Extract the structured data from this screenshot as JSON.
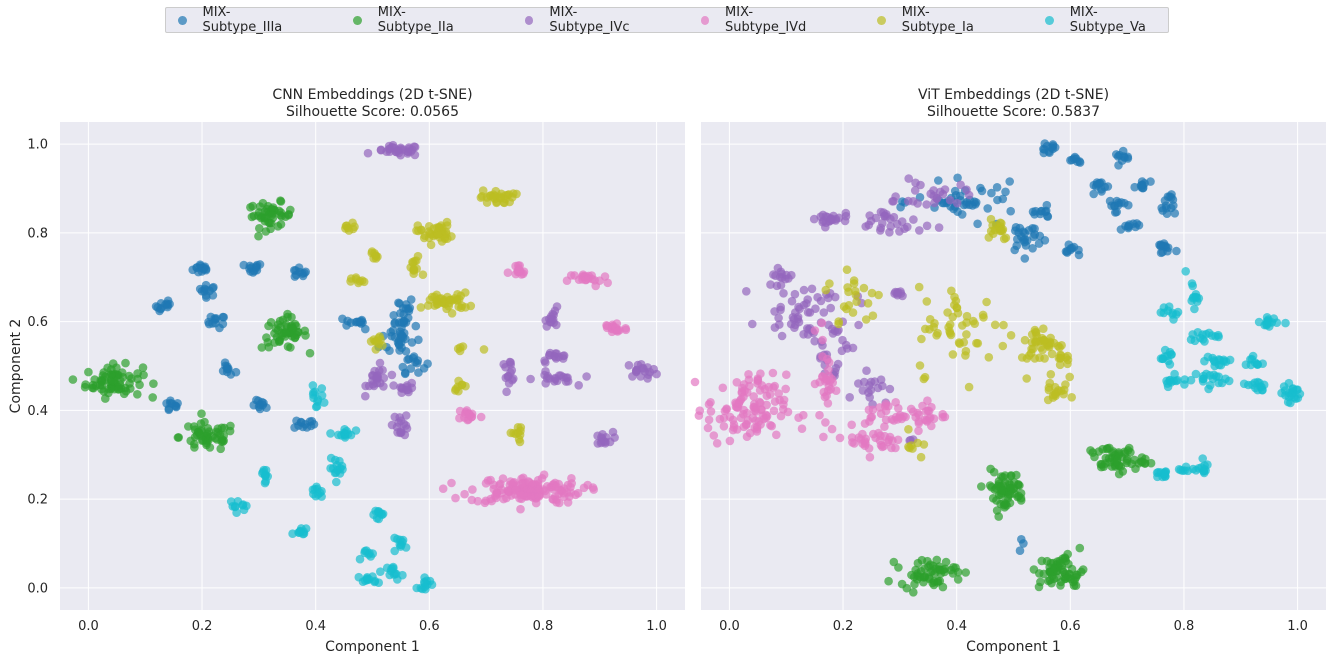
{
  "legend": [
    {
      "label": "MIX-Subtype_IIIa",
      "color": "#1f77b4"
    },
    {
      "label": "MIX-Subtype_IIa",
      "color": "#2ca02c"
    },
    {
      "label": "MIX-Subtype_IVc",
      "color": "#9467bd"
    },
    {
      "label": "MIX-Subtype_IVd",
      "color": "#e377c2"
    },
    {
      "label": "MIX-Subtype_Ia",
      "color": "#bcbd22"
    },
    {
      "label": "MIX-Subtype_Va",
      "color": "#17becf"
    }
  ],
  "chart_data": [
    {
      "type": "scatter",
      "title": "CNN Embeddings (2D t-SNE)",
      "subtitle": "Silhouette Score: 0.0565",
      "xlabel": "Component 1",
      "ylabel": "Component 2",
      "xlim": [
        -0.05,
        1.05
      ],
      "ylim": [
        -0.05,
        1.05
      ],
      "xticks": [
        "0.0",
        "0.2",
        "0.4",
        "0.6",
        "0.8",
        "1.0"
      ],
      "yticks": [
        "0.0",
        "0.2",
        "0.4",
        "0.6",
        "0.8",
        "1.0"
      ],
      "grid": true,
      "clusters": [
        {
          "series": "MIX-Subtype_IIIa",
          "x": 0.2,
          "y": 0.72,
          "sx": 0.008,
          "sy": 0.006,
          "n": 14
        },
        {
          "series": "MIX-Subtype_IIIa",
          "x": 0.21,
          "y": 0.67,
          "sx": 0.008,
          "sy": 0.006,
          "n": 12
        },
        {
          "series": "MIX-Subtype_IIIa",
          "x": 0.135,
          "y": 0.635,
          "sx": 0.008,
          "sy": 0.008,
          "n": 12
        },
        {
          "series": "MIX-Subtype_IIIa",
          "x": 0.225,
          "y": 0.6,
          "sx": 0.008,
          "sy": 0.007,
          "n": 12
        },
        {
          "series": "MIX-Subtype_IIIa",
          "x": 0.29,
          "y": 0.72,
          "sx": 0.008,
          "sy": 0.006,
          "n": 12
        },
        {
          "series": "MIX-Subtype_IIIa",
          "x": 0.37,
          "y": 0.71,
          "sx": 0.007,
          "sy": 0.007,
          "n": 10
        },
        {
          "series": "MIX-Subtype_IIIa",
          "x": 0.245,
          "y": 0.49,
          "sx": 0.007,
          "sy": 0.007,
          "n": 10
        },
        {
          "series": "MIX-Subtype_IIIa",
          "x": 0.145,
          "y": 0.41,
          "sx": 0.008,
          "sy": 0.007,
          "n": 10
        },
        {
          "series": "MIX-Subtype_IIIa",
          "x": 0.305,
          "y": 0.41,
          "sx": 0.008,
          "sy": 0.006,
          "n": 10
        },
        {
          "series": "MIX-Subtype_IIIa",
          "x": 0.38,
          "y": 0.37,
          "sx": 0.009,
          "sy": 0.006,
          "n": 12
        },
        {
          "series": "MIX-Subtype_IIIa",
          "x": 0.47,
          "y": 0.6,
          "sx": 0.01,
          "sy": 0.006,
          "n": 12
        },
        {
          "series": "MIX-Subtype_IIIa",
          "x": 0.55,
          "y": 0.62,
          "sx": 0.012,
          "sy": 0.02,
          "n": 22
        },
        {
          "series": "MIX-Subtype_IIIa",
          "x": 0.55,
          "y": 0.56,
          "sx": 0.018,
          "sy": 0.02,
          "n": 28
        },
        {
          "series": "MIX-Subtype_IIIa",
          "x": 0.57,
          "y": 0.51,
          "sx": 0.012,
          "sy": 0.012,
          "n": 14
        },
        {
          "series": "MIX-Subtype_IIa",
          "x": 0.045,
          "y": 0.465,
          "sx": 0.025,
          "sy": 0.018,
          "n": 70
        },
        {
          "series": "MIX-Subtype_IIa",
          "x": 0.32,
          "y": 0.84,
          "sx": 0.02,
          "sy": 0.014,
          "n": 45
        },
        {
          "series": "MIX-Subtype_IIa",
          "x": 0.345,
          "y": 0.575,
          "sx": 0.02,
          "sy": 0.018,
          "n": 50
        },
        {
          "series": "MIX-Subtype_IIa",
          "x": 0.21,
          "y": 0.34,
          "sx": 0.025,
          "sy": 0.016,
          "n": 50
        },
        {
          "series": "MIX-Subtype_IVc",
          "x": 0.545,
          "y": 0.985,
          "sx": 0.02,
          "sy": 0.006,
          "n": 30
        },
        {
          "series": "MIX-Subtype_IVc",
          "x": 0.51,
          "y": 0.47,
          "sx": 0.01,
          "sy": 0.015,
          "n": 22
        },
        {
          "series": "MIX-Subtype_IVc",
          "x": 0.56,
          "y": 0.45,
          "sx": 0.008,
          "sy": 0.006,
          "n": 12
        },
        {
          "series": "MIX-Subtype_IVc",
          "x": 0.55,
          "y": 0.37,
          "sx": 0.007,
          "sy": 0.014,
          "n": 16
        },
        {
          "series": "MIX-Subtype_IVc",
          "x": 0.82,
          "y": 0.61,
          "sx": 0.008,
          "sy": 0.01,
          "n": 14
        },
        {
          "series": "MIX-Subtype_IVc",
          "x": 0.82,
          "y": 0.52,
          "sx": 0.012,
          "sy": 0.006,
          "n": 14
        },
        {
          "series": "MIX-Subtype_IVc",
          "x": 0.74,
          "y": 0.49,
          "sx": 0.007,
          "sy": 0.012,
          "n": 14
        },
        {
          "series": "MIX-Subtype_IVc",
          "x": 0.82,
          "y": 0.47,
          "sx": 0.018,
          "sy": 0.008,
          "n": 20
        },
        {
          "series": "MIX-Subtype_IVc",
          "x": 0.975,
          "y": 0.49,
          "sx": 0.015,
          "sy": 0.008,
          "n": 18
        },
        {
          "series": "MIX-Subtype_IVc",
          "x": 0.905,
          "y": 0.335,
          "sx": 0.009,
          "sy": 0.008,
          "n": 14
        },
        {
          "series": "MIX-Subtype_IVd",
          "x": 0.755,
          "y": 0.71,
          "sx": 0.008,
          "sy": 0.01,
          "n": 14
        },
        {
          "series": "MIX-Subtype_IVd",
          "x": 0.88,
          "y": 0.695,
          "sx": 0.018,
          "sy": 0.008,
          "n": 20
        },
        {
          "series": "MIX-Subtype_IVd",
          "x": 0.925,
          "y": 0.585,
          "sx": 0.012,
          "sy": 0.008,
          "n": 18
        },
        {
          "series": "MIX-Subtype_IVd",
          "x": 0.67,
          "y": 0.39,
          "sx": 0.01,
          "sy": 0.008,
          "n": 14
        },
        {
          "series": "MIX-Subtype_IVd",
          "x": 0.77,
          "y": 0.22,
          "sx": 0.05,
          "sy": 0.015,
          "n": 140
        },
        {
          "series": "MIX-Subtype_Ia",
          "x": 0.72,
          "y": 0.88,
          "sx": 0.015,
          "sy": 0.008,
          "n": 28
        },
        {
          "series": "MIX-Subtype_Ia",
          "x": 0.61,
          "y": 0.8,
          "sx": 0.015,
          "sy": 0.012,
          "n": 40
        },
        {
          "series": "MIX-Subtype_Ia",
          "x": 0.46,
          "y": 0.81,
          "sx": 0.006,
          "sy": 0.006,
          "n": 8
        },
        {
          "series": "MIX-Subtype_Ia",
          "x": 0.505,
          "y": 0.75,
          "sx": 0.006,
          "sy": 0.005,
          "n": 8
        },
        {
          "series": "MIX-Subtype_Ia",
          "x": 0.475,
          "y": 0.69,
          "sx": 0.006,
          "sy": 0.005,
          "n": 8
        },
        {
          "series": "MIX-Subtype_Ia",
          "x": 0.575,
          "y": 0.72,
          "sx": 0.006,
          "sy": 0.015,
          "n": 12
        },
        {
          "series": "MIX-Subtype_Ia",
          "x": 0.63,
          "y": 0.645,
          "sx": 0.02,
          "sy": 0.01,
          "n": 40
        },
        {
          "series": "MIX-Subtype_Ia",
          "x": 0.51,
          "y": 0.555,
          "sx": 0.007,
          "sy": 0.008,
          "n": 10
        },
        {
          "series": "MIX-Subtype_Ia",
          "x": 0.655,
          "y": 0.54,
          "sx": 0.004,
          "sy": 0.004,
          "n": 4
        },
        {
          "series": "MIX-Subtype_Ia",
          "x": 0.7,
          "y": 0.535,
          "sx": 0.002,
          "sy": 0.002,
          "n": 1
        },
        {
          "series": "MIX-Subtype_Ia",
          "x": 0.655,
          "y": 0.46,
          "sx": 0.006,
          "sy": 0.008,
          "n": 8
        },
        {
          "series": "MIX-Subtype_Ia",
          "x": 0.755,
          "y": 0.345,
          "sx": 0.006,
          "sy": 0.01,
          "n": 10
        },
        {
          "series": "MIX-Subtype_Va",
          "x": 0.4,
          "y": 0.43,
          "sx": 0.007,
          "sy": 0.012,
          "n": 12
        },
        {
          "series": "MIX-Subtype_Va",
          "x": 0.45,
          "y": 0.345,
          "sx": 0.008,
          "sy": 0.008,
          "n": 14
        },
        {
          "series": "MIX-Subtype_Va",
          "x": 0.31,
          "y": 0.26,
          "sx": 0.006,
          "sy": 0.01,
          "n": 10
        },
        {
          "series": "MIX-Subtype_Va",
          "x": 0.44,
          "y": 0.27,
          "sx": 0.008,
          "sy": 0.01,
          "n": 14
        },
        {
          "series": "MIX-Subtype_Va",
          "x": 0.4,
          "y": 0.215,
          "sx": 0.006,
          "sy": 0.008,
          "n": 10
        },
        {
          "series": "MIX-Subtype_Va",
          "x": 0.265,
          "y": 0.185,
          "sx": 0.008,
          "sy": 0.006,
          "n": 10
        },
        {
          "series": "MIX-Subtype_Va",
          "x": 0.375,
          "y": 0.125,
          "sx": 0.007,
          "sy": 0.006,
          "n": 10
        },
        {
          "series": "MIX-Subtype_Va",
          "x": 0.515,
          "y": 0.165,
          "sx": 0.008,
          "sy": 0.006,
          "n": 10
        },
        {
          "series": "MIX-Subtype_Va",
          "x": 0.55,
          "y": 0.1,
          "sx": 0.008,
          "sy": 0.006,
          "n": 10
        },
        {
          "series": "MIX-Subtype_Va",
          "x": 0.495,
          "y": 0.075,
          "sx": 0.006,
          "sy": 0.006,
          "n": 8
        },
        {
          "series": "MIX-Subtype_Va",
          "x": 0.54,
          "y": 0.035,
          "sx": 0.007,
          "sy": 0.008,
          "n": 12
        },
        {
          "series": "MIX-Subtype_Va",
          "x": 0.49,
          "y": 0.018,
          "sx": 0.008,
          "sy": 0.006,
          "n": 12
        },
        {
          "series": "MIX-Subtype_Va",
          "x": 0.595,
          "y": 0.01,
          "sx": 0.008,
          "sy": 0.006,
          "n": 12
        }
      ]
    },
    {
      "type": "scatter",
      "title": "ViT Embeddings (2D t-SNE)",
      "subtitle": "Silhouette Score: 0.5837",
      "xlabel": "Component 1",
      "ylabel": "",
      "xlim": [
        -0.05,
        1.05
      ],
      "ylim": [
        -0.05,
        1.05
      ],
      "xticks": [
        "0.0",
        "0.2",
        "0.4",
        "0.6",
        "0.8",
        "1.0"
      ],
      "yticks": [],
      "grid": true,
      "clusters": [
        {
          "series": "MIX-Subtype_IIIa",
          "x": 0.56,
          "y": 0.99,
          "sx": 0.008,
          "sy": 0.006,
          "n": 12
        },
        {
          "series": "MIX-Subtype_IIIa",
          "x": 0.61,
          "y": 0.965,
          "sx": 0.008,
          "sy": 0.004,
          "n": 8
        },
        {
          "series": "MIX-Subtype_IIIa",
          "x": 0.695,
          "y": 0.97,
          "sx": 0.008,
          "sy": 0.006,
          "n": 10
        },
        {
          "series": "MIX-Subtype_IIIa",
          "x": 0.65,
          "y": 0.905,
          "sx": 0.008,
          "sy": 0.008,
          "n": 12
        },
        {
          "series": "MIX-Subtype_IIIa",
          "x": 0.73,
          "y": 0.905,
          "sx": 0.007,
          "sy": 0.008,
          "n": 10
        },
        {
          "series": "MIX-Subtype_IIIa",
          "x": 0.68,
          "y": 0.865,
          "sx": 0.008,
          "sy": 0.008,
          "n": 12
        },
        {
          "series": "MIX-Subtype_IIIa",
          "x": 0.77,
          "y": 0.865,
          "sx": 0.007,
          "sy": 0.015,
          "n": 14
        },
        {
          "series": "MIX-Subtype_IIIa",
          "x": 0.705,
          "y": 0.815,
          "sx": 0.008,
          "sy": 0.006,
          "n": 10
        },
        {
          "series": "MIX-Subtype_IIIa",
          "x": 0.605,
          "y": 0.76,
          "sx": 0.007,
          "sy": 0.006,
          "n": 10
        },
        {
          "series": "MIX-Subtype_IIIa",
          "x": 0.765,
          "y": 0.765,
          "sx": 0.008,
          "sy": 0.008,
          "n": 12
        },
        {
          "series": "MIX-Subtype_IIIa",
          "x": 0.52,
          "y": 0.79,
          "sx": 0.015,
          "sy": 0.02,
          "n": 26
        },
        {
          "series": "MIX-Subtype_IIIa",
          "x": 0.42,
          "y": 0.87,
          "sx": 0.045,
          "sy": 0.02,
          "n": 45
        },
        {
          "series": "MIX-Subtype_IIIa",
          "x": 0.55,
          "y": 0.845,
          "sx": 0.01,
          "sy": 0.006,
          "n": 10
        },
        {
          "series": "MIX-Subtype_IIIa",
          "x": 0.515,
          "y": 0.1,
          "sx": 0.003,
          "sy": 0.012,
          "n": 3
        },
        {
          "series": "MIX-Subtype_IVc",
          "x": 0.175,
          "y": 0.83,
          "sx": 0.018,
          "sy": 0.008,
          "n": 22
        },
        {
          "series": "MIX-Subtype_IVc",
          "x": 0.28,
          "y": 0.82,
          "sx": 0.03,
          "sy": 0.02,
          "n": 28
        },
        {
          "series": "MIX-Subtype_IVc",
          "x": 0.36,
          "y": 0.885,
          "sx": 0.03,
          "sy": 0.015,
          "n": 24
        },
        {
          "series": "MIX-Subtype_IVc",
          "x": 0.09,
          "y": 0.7,
          "sx": 0.01,
          "sy": 0.008,
          "n": 12
        },
        {
          "series": "MIX-Subtype_IVc",
          "x": 0.12,
          "y": 0.63,
          "sx": 0.03,
          "sy": 0.03,
          "n": 40
        },
        {
          "series": "MIX-Subtype_IVc",
          "x": 0.18,
          "y": 0.57,
          "sx": 0.025,
          "sy": 0.06,
          "n": 40
        },
        {
          "series": "MIX-Subtype_IVc",
          "x": 0.25,
          "y": 0.46,
          "sx": 0.015,
          "sy": 0.02,
          "n": 16
        },
        {
          "series": "MIX-Subtype_IVc",
          "x": 0.295,
          "y": 0.66,
          "sx": 0.007,
          "sy": 0.006,
          "n": 8
        },
        {
          "series": "MIX-Subtype_IVc",
          "x": 0.315,
          "y": 0.33,
          "sx": 0.004,
          "sy": 0.004,
          "n": 3
        },
        {
          "series": "MIX-Subtype_IVd",
          "x": 0.03,
          "y": 0.4,
          "sx": 0.035,
          "sy": 0.04,
          "n": 110
        },
        {
          "series": "MIX-Subtype_IVd",
          "x": 0.17,
          "y": 0.47,
          "sx": 0.008,
          "sy": 0.06,
          "n": 30
        },
        {
          "series": "MIX-Subtype_IVd",
          "x": 0.275,
          "y": 0.39,
          "sx": 0.018,
          "sy": 0.015,
          "n": 24
        },
        {
          "series": "MIX-Subtype_IVd",
          "x": 0.34,
          "y": 0.39,
          "sx": 0.02,
          "sy": 0.015,
          "n": 26
        },
        {
          "series": "MIX-Subtype_IVd",
          "x": 0.26,
          "y": 0.33,
          "sx": 0.025,
          "sy": 0.015,
          "n": 30
        },
        {
          "series": "MIX-Subtype_Ia",
          "x": 0.47,
          "y": 0.815,
          "sx": 0.012,
          "sy": 0.015,
          "n": 18
        },
        {
          "series": "MIX-Subtype_Ia",
          "x": 0.22,
          "y": 0.65,
          "sx": 0.025,
          "sy": 0.04,
          "n": 22
        },
        {
          "series": "MIX-Subtype_Ia",
          "x": 0.41,
          "y": 0.58,
          "sx": 0.04,
          "sy": 0.05,
          "n": 50
        },
        {
          "series": "MIX-Subtype_Ia",
          "x": 0.55,
          "y": 0.55,
          "sx": 0.02,
          "sy": 0.02,
          "n": 40
        },
        {
          "series": "MIX-Subtype_Ia",
          "x": 0.59,
          "y": 0.52,
          "sx": 0.008,
          "sy": 0.008,
          "n": 10
        },
        {
          "series": "MIX-Subtype_Ia",
          "x": 0.575,
          "y": 0.45,
          "sx": 0.01,
          "sy": 0.025,
          "n": 18
        },
        {
          "series": "MIX-Subtype_Ia",
          "x": 0.32,
          "y": 0.32,
          "sx": 0.01,
          "sy": 0.015,
          "n": 8
        },
        {
          "series": "MIX-Subtype_IIa",
          "x": 0.485,
          "y": 0.22,
          "sx": 0.018,
          "sy": 0.022,
          "n": 60
        },
        {
          "series": "MIX-Subtype_IIa",
          "x": 0.35,
          "y": 0.035,
          "sx": 0.025,
          "sy": 0.015,
          "n": 55
        },
        {
          "series": "MIX-Subtype_IIa",
          "x": 0.585,
          "y": 0.035,
          "sx": 0.02,
          "sy": 0.02,
          "n": 60
        },
        {
          "series": "MIX-Subtype_IIa",
          "x": 0.68,
          "y": 0.29,
          "sx": 0.025,
          "sy": 0.015,
          "n": 55
        },
        {
          "series": "MIX-Subtype_Va",
          "x": 0.815,
          "y": 0.66,
          "sx": 0.006,
          "sy": 0.015,
          "n": 12
        },
        {
          "series": "MIX-Subtype_Va",
          "x": 0.78,
          "y": 0.62,
          "sx": 0.01,
          "sy": 0.006,
          "n": 10
        },
        {
          "series": "MIX-Subtype_Va",
          "x": 0.84,
          "y": 0.565,
          "sx": 0.015,
          "sy": 0.006,
          "n": 14
        },
        {
          "series": "MIX-Subtype_Va",
          "x": 0.945,
          "y": 0.6,
          "sx": 0.012,
          "sy": 0.008,
          "n": 14
        },
        {
          "series": "MIX-Subtype_Va",
          "x": 0.86,
          "y": 0.51,
          "sx": 0.012,
          "sy": 0.008,
          "n": 14
        },
        {
          "series": "MIX-Subtype_Va",
          "x": 0.77,
          "y": 0.52,
          "sx": 0.006,
          "sy": 0.015,
          "n": 12
        },
        {
          "series": "MIX-Subtype_Va",
          "x": 0.775,
          "y": 0.465,
          "sx": 0.015,
          "sy": 0.004,
          "n": 12
        },
        {
          "series": "MIX-Subtype_Va",
          "x": 0.84,
          "y": 0.47,
          "sx": 0.02,
          "sy": 0.01,
          "n": 18
        },
        {
          "series": "MIX-Subtype_Va",
          "x": 0.925,
          "y": 0.51,
          "sx": 0.008,
          "sy": 0.008,
          "n": 10
        },
        {
          "series": "MIX-Subtype_Va",
          "x": 0.93,
          "y": 0.455,
          "sx": 0.012,
          "sy": 0.008,
          "n": 12
        },
        {
          "series": "MIX-Subtype_Va",
          "x": 0.99,
          "y": 0.44,
          "sx": 0.008,
          "sy": 0.01,
          "n": 20
        },
        {
          "series": "MIX-Subtype_Va",
          "x": 0.76,
          "y": 0.255,
          "sx": 0.01,
          "sy": 0.006,
          "n": 12
        },
        {
          "series": "MIX-Subtype_Va",
          "x": 0.8,
          "y": 0.265,
          "sx": 0.008,
          "sy": 0.004,
          "n": 6
        },
        {
          "series": "MIX-Subtype_Va",
          "x": 0.83,
          "y": 0.27,
          "sx": 0.008,
          "sy": 0.006,
          "n": 12
        }
      ]
    }
  ]
}
